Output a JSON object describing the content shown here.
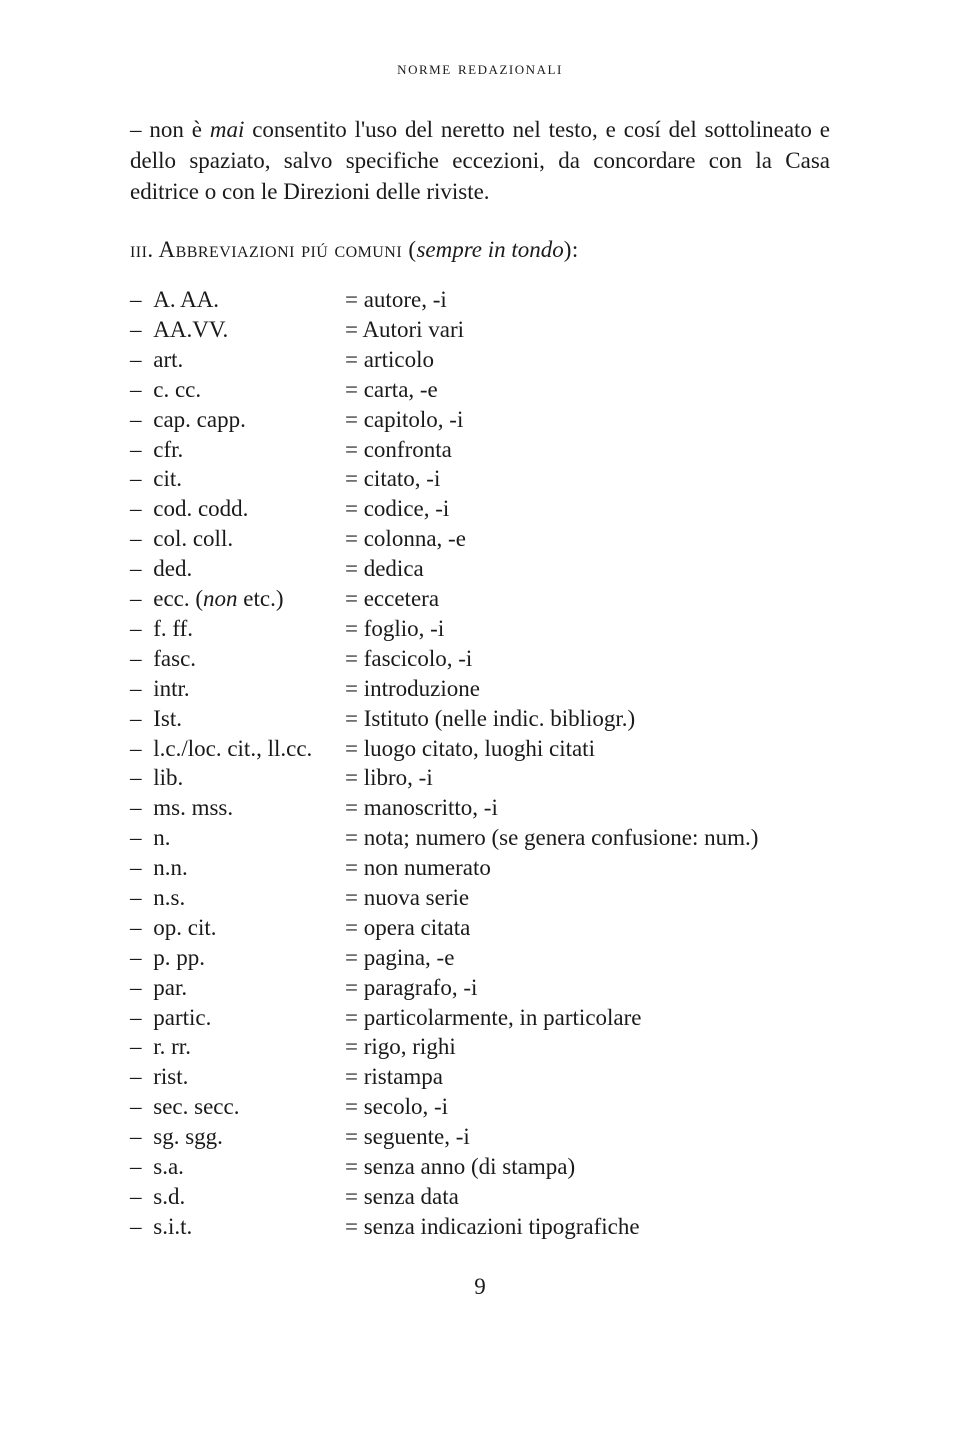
{
  "running_head": "norme redazionali",
  "intro": {
    "dash": "–",
    "pre": "non è ",
    "em1": "mai",
    "post": " consentito l'uso del neretto nel testo, e cosí del sottolineato e dello spaziato, salvo specifiche eccezioni, da concordare con la Casa editrice o con le Direzioni delle riviste."
  },
  "section": {
    "num": "iii. ",
    "title": "Abbreviazioni piú comuni (",
    "em": "sempre in tondo",
    "close": "):"
  },
  "rows": [
    {
      "a": "A. AA.",
      "b": "= autore, -i"
    },
    {
      "a": "AA.VV.",
      "b": "= Autori vari"
    },
    {
      "a": "art.",
      "b": "= articolo"
    },
    {
      "a": "c. cc.",
      "b": "= carta, -e"
    },
    {
      "a": "cap. capp.",
      "b": "= capitolo, -i"
    },
    {
      "a": "cfr.",
      "b": "= confronta"
    },
    {
      "a": "cit.",
      "b": "= citato, -i"
    },
    {
      "a": "cod. codd.",
      "b": "= codice, -i"
    },
    {
      "a": "col. coll.",
      "b": "= colonna, -e"
    },
    {
      "a": "ded.",
      "b": "= dedica"
    },
    {
      "a_pre": "ecc. (",
      "a_em": "non",
      "a_post": " etc.)",
      "b": "= eccetera"
    },
    {
      "a": "f. ff.",
      "b": "= foglio, -i"
    },
    {
      "a": "fasc.",
      "b": "= fascicolo, -i"
    },
    {
      "a": "intr.",
      "b": "= introduzione"
    },
    {
      "a": "Ist.",
      "b": "= Istituto (nelle indic. bibliogr.)"
    },
    {
      "a": "l.c./loc. cit., ll.cc.",
      "b": "= luogo citato, luoghi citati"
    },
    {
      "a": "lib.",
      "b": "= libro, -i"
    },
    {
      "a": "ms. mss.",
      "b": "= manoscritto, -i"
    },
    {
      "a": "n.",
      "b": "= nota; numero (se genera confusione: num.)"
    },
    {
      "a": "n.n.",
      "b": "= non numerato"
    },
    {
      "a": "n.s.",
      "b": "= nuova serie"
    },
    {
      "a": "op. cit.",
      "b": "= opera citata"
    },
    {
      "a": "p. pp.",
      "b": "= pagina, -e"
    },
    {
      "a": "par.",
      "b": "= paragrafo, -i"
    },
    {
      "a": "partic.",
      "b": "= particolarmente, in particolare"
    },
    {
      "a": "r. rr.",
      "b": "= rigo, righi"
    },
    {
      "a": "rist.",
      "b": "= ristampa"
    },
    {
      "a": "sec. secc.",
      "b": "= secolo, -i"
    },
    {
      "a": "sg. sgg.",
      "b": "= seguente, -i"
    },
    {
      "a": "s.a.",
      "b": "= senza anno (di stampa)"
    },
    {
      "a": "s.d.",
      "b": "= senza data"
    },
    {
      "a": "s.i.t.",
      "b": "= senza indicazioni tipografiche"
    }
  ],
  "dash": "–",
  "page_number": "9"
}
